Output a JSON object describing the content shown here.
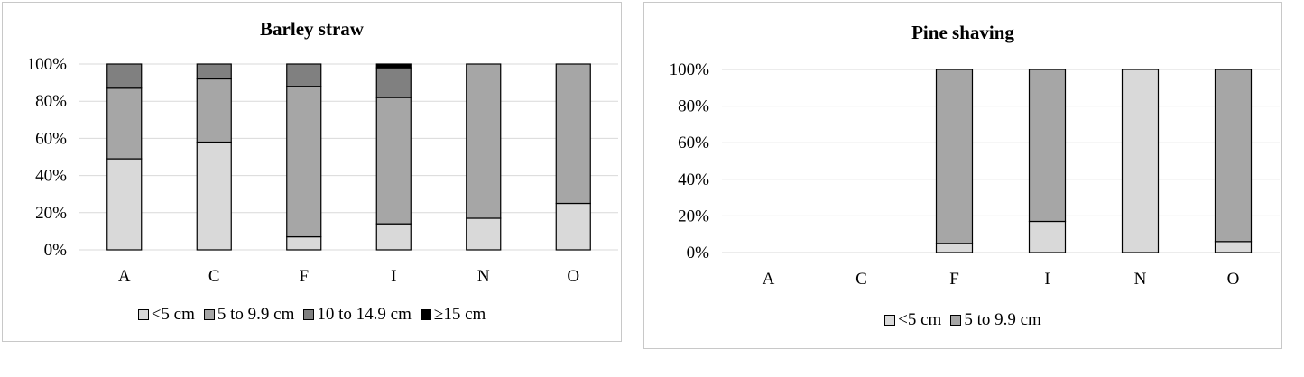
{
  "chart_data": [
    {
      "type": "bar",
      "stacked": true,
      "title": "Barley straw",
      "categories": [
        "A",
        "C",
        "F",
        "I",
        "N",
        "O"
      ],
      "ylim": [
        0,
        100
      ],
      "yticks": [
        "0%",
        "20%",
        "40%",
        "60%",
        "80%",
        "100%"
      ],
      "grid": true,
      "legend_position": "bottom",
      "series": [
        {
          "name": "<5 cm",
          "color": "#d9d9d9",
          "values": [
            49,
            58,
            7,
            14,
            17,
            25
          ]
        },
        {
          "name": "5 to 9.9 cm",
          "color": "#a6a6a6",
          "values": [
            38,
            34,
            81,
            68,
            83,
            75
          ]
        },
        {
          "name": "10 to 14.9 cm",
          "color": "#808080",
          "values": [
            13,
            8,
            12,
            16,
            0,
            0
          ]
        },
        {
          "name": "≥15 cm",
          "color": "#000000",
          "values": [
            0,
            0,
            0,
            2,
            0,
            0
          ]
        }
      ]
    },
    {
      "type": "bar",
      "stacked": true,
      "title": "Pine shaving",
      "categories": [
        "A",
        "C",
        "F",
        "I",
        "N",
        "O"
      ],
      "ylim": [
        0,
        100
      ],
      "yticks": [
        "0%",
        "20%",
        "40%",
        "60%",
        "80%",
        "100%"
      ],
      "grid": true,
      "legend_position": "bottom",
      "series": [
        {
          "name": "<5 cm",
          "color": "#d9d9d9",
          "values": [
            0,
            0,
            5,
            17,
            100,
            6
          ]
        },
        {
          "name": "5 to 9.9 cm",
          "color": "#a6a6a6",
          "values": [
            0,
            0,
            95,
            83,
            0,
            94
          ]
        }
      ]
    }
  ]
}
